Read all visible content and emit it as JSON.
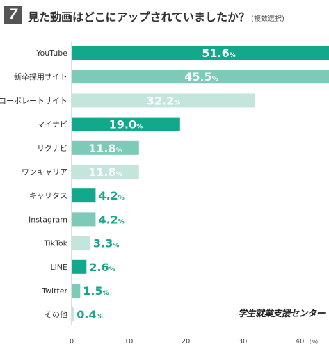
{
  "header": {
    "number": "7",
    "title": "見た動画はどこにアップされていましたか？",
    "note": "(複数選択)"
  },
  "logo": "学生就業支援センター",
  "chart_data": {
    "type": "bar",
    "orientation": "horizontal",
    "categories": [
      "YouTube",
      "新卒採用サイト",
      "コーポレートサイト",
      "マイナビ",
      "リクナビ",
      "ワンキャリア",
      "キャリタス",
      "Instagram",
      "TikTok",
      "LINE",
      "Twitter",
      "その他"
    ],
    "values": [
      51.6,
      45.5,
      32.2,
      19.0,
      11.8,
      11.8,
      4.2,
      4.2,
      3.3,
      2.6,
      1.5,
      0.4
    ],
    "value_labels": [
      "51.6",
      "45.5",
      "32.2",
      "19.0",
      "11.8",
      "11.8",
      "4.2",
      "4.2",
      "3.3",
      "2.6",
      "1.5",
      "0.4"
    ],
    "value_suffix": "%",
    "bar_colors": [
      "#11a88c",
      "#7ecab8",
      "#c4e5dc",
      "#11a88c",
      "#7ecab8",
      "#c4e5dc",
      "#11a88c",
      "#7ecab8",
      "#c4e5dc",
      "#11a88c",
      "#7ecab8",
      "#c4e5dc"
    ],
    "label_color_outside": "#17a68b",
    "x_ticks": [
      "0",
      "10",
      "20",
      "30",
      "40"
    ],
    "x_tick_values": [
      0,
      10,
      20,
      30,
      40
    ],
    "x_unit": "(%)",
    "xlim": [
      0,
      51.6
    ],
    "grid": false
  }
}
